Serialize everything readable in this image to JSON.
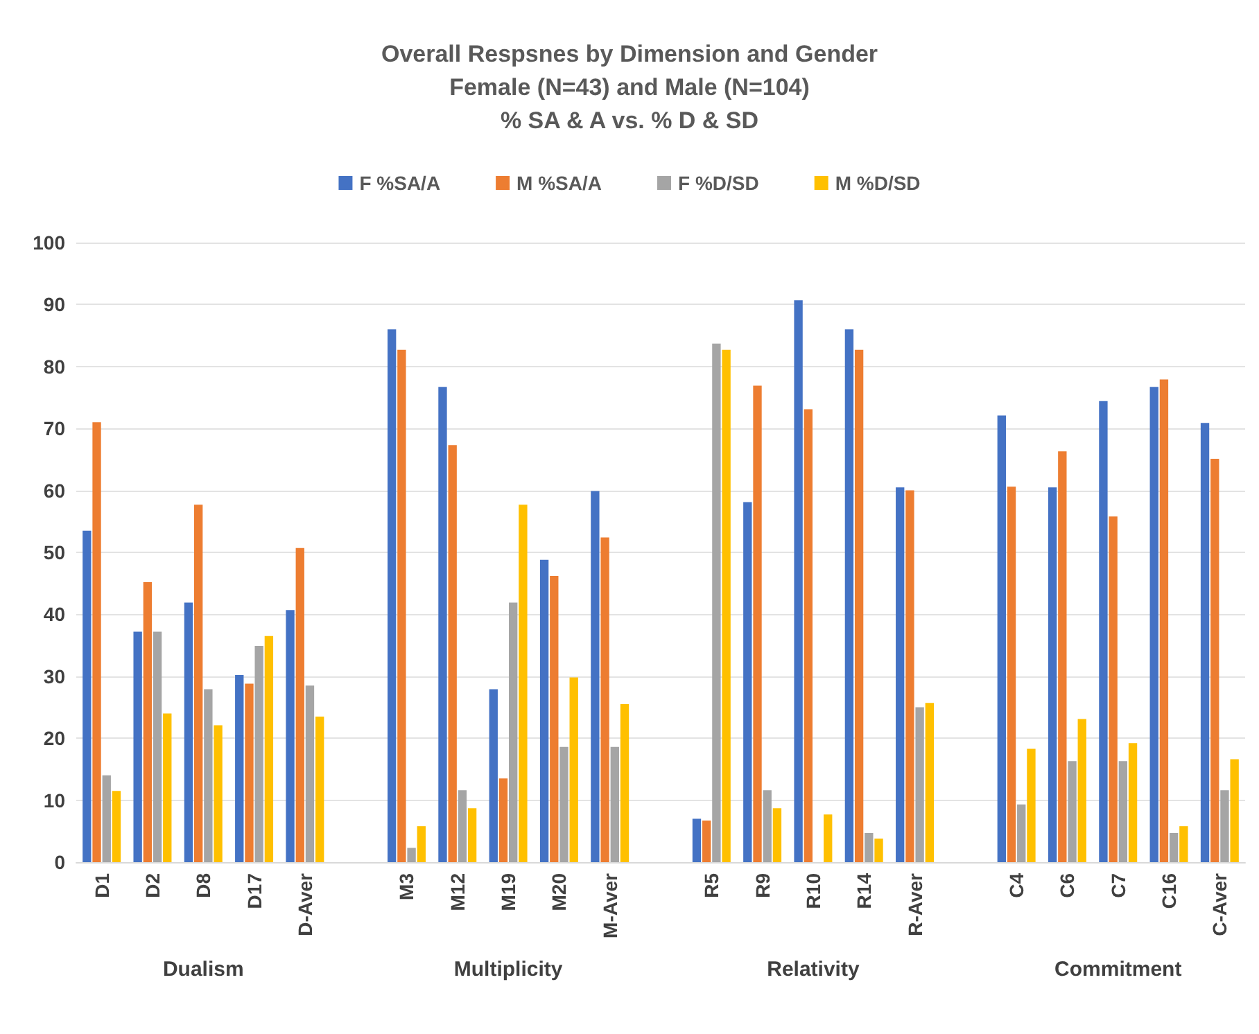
{
  "chart_data": {
    "type": "bar",
    "title": "Overall Respsnes by Dimension and Gender\nFemale (N=43) and Male (N=104)\n% SA & A vs. % D & SD",
    "categories": [
      "D1",
      "D2",
      "D8",
      "D17",
      "D-Aver",
      null,
      "M3",
      "M12",
      "M19",
      "M20",
      "M-Aver",
      null,
      "R5",
      "R9",
      "R10",
      "R14",
      "R-Aver",
      null,
      "C4",
      "C6",
      "C7",
      "C16",
      "C-Aver"
    ],
    "series": [
      {
        "name": "F %SA/A",
        "color": "#4472c4",
        "values": [
          53.5,
          37.2,
          41.9,
          30.2,
          40.7,
          null,
          86,
          76.7,
          27.9,
          48.8,
          59.9,
          null,
          7,
          58.1,
          90.7,
          86,
          60.5,
          null,
          72.1,
          60.5,
          74.4,
          76.7,
          70.9
        ]
      },
      {
        "name": "M %SA/A",
        "color": "#ed7d31",
        "values": [
          71,
          45.2,
          57.7,
          28.8,
          50.7,
          null,
          82.7,
          67.3,
          13.5,
          46.2,
          52.4,
          null,
          6.7,
          76.9,
          73.1,
          82.7,
          60,
          null,
          60.6,
          66.3,
          55.8,
          77.9,
          65.1
        ]
      },
      {
        "name": "F %D/SD",
        "color": "#a5a5a5",
        "values": [
          14,
          37.2,
          27.9,
          34.9,
          28.5,
          null,
          2.3,
          11.6,
          41.9,
          18.6,
          18.6,
          null,
          83.7,
          11.6,
          0,
          4.7,
          25,
          null,
          9.3,
          16.3,
          16.3,
          4.7,
          11.6
        ]
      },
      {
        "name": "M %D/SD",
        "color": "#ffc000",
        "values": [
          11.5,
          24,
          22.1,
          36.5,
          23.5,
          null,
          5.8,
          8.7,
          57.7,
          29.8,
          25.5,
          null,
          82.7,
          8.7,
          7.7,
          3.8,
          25.7,
          null,
          18.3,
          23.1,
          19.2,
          5.8,
          16.6
        ]
      }
    ],
    "annotations": [
      "Dualism",
      "Multiplicity",
      "Relativity",
      "Commitment"
    ],
    "ylim": [
      0,
      100
    ],
    "yticks": [
      0,
      10,
      20,
      30,
      40,
      50,
      60,
      70,
      80,
      90,
      100
    ],
    "grid": "y",
    "legend": "top"
  }
}
